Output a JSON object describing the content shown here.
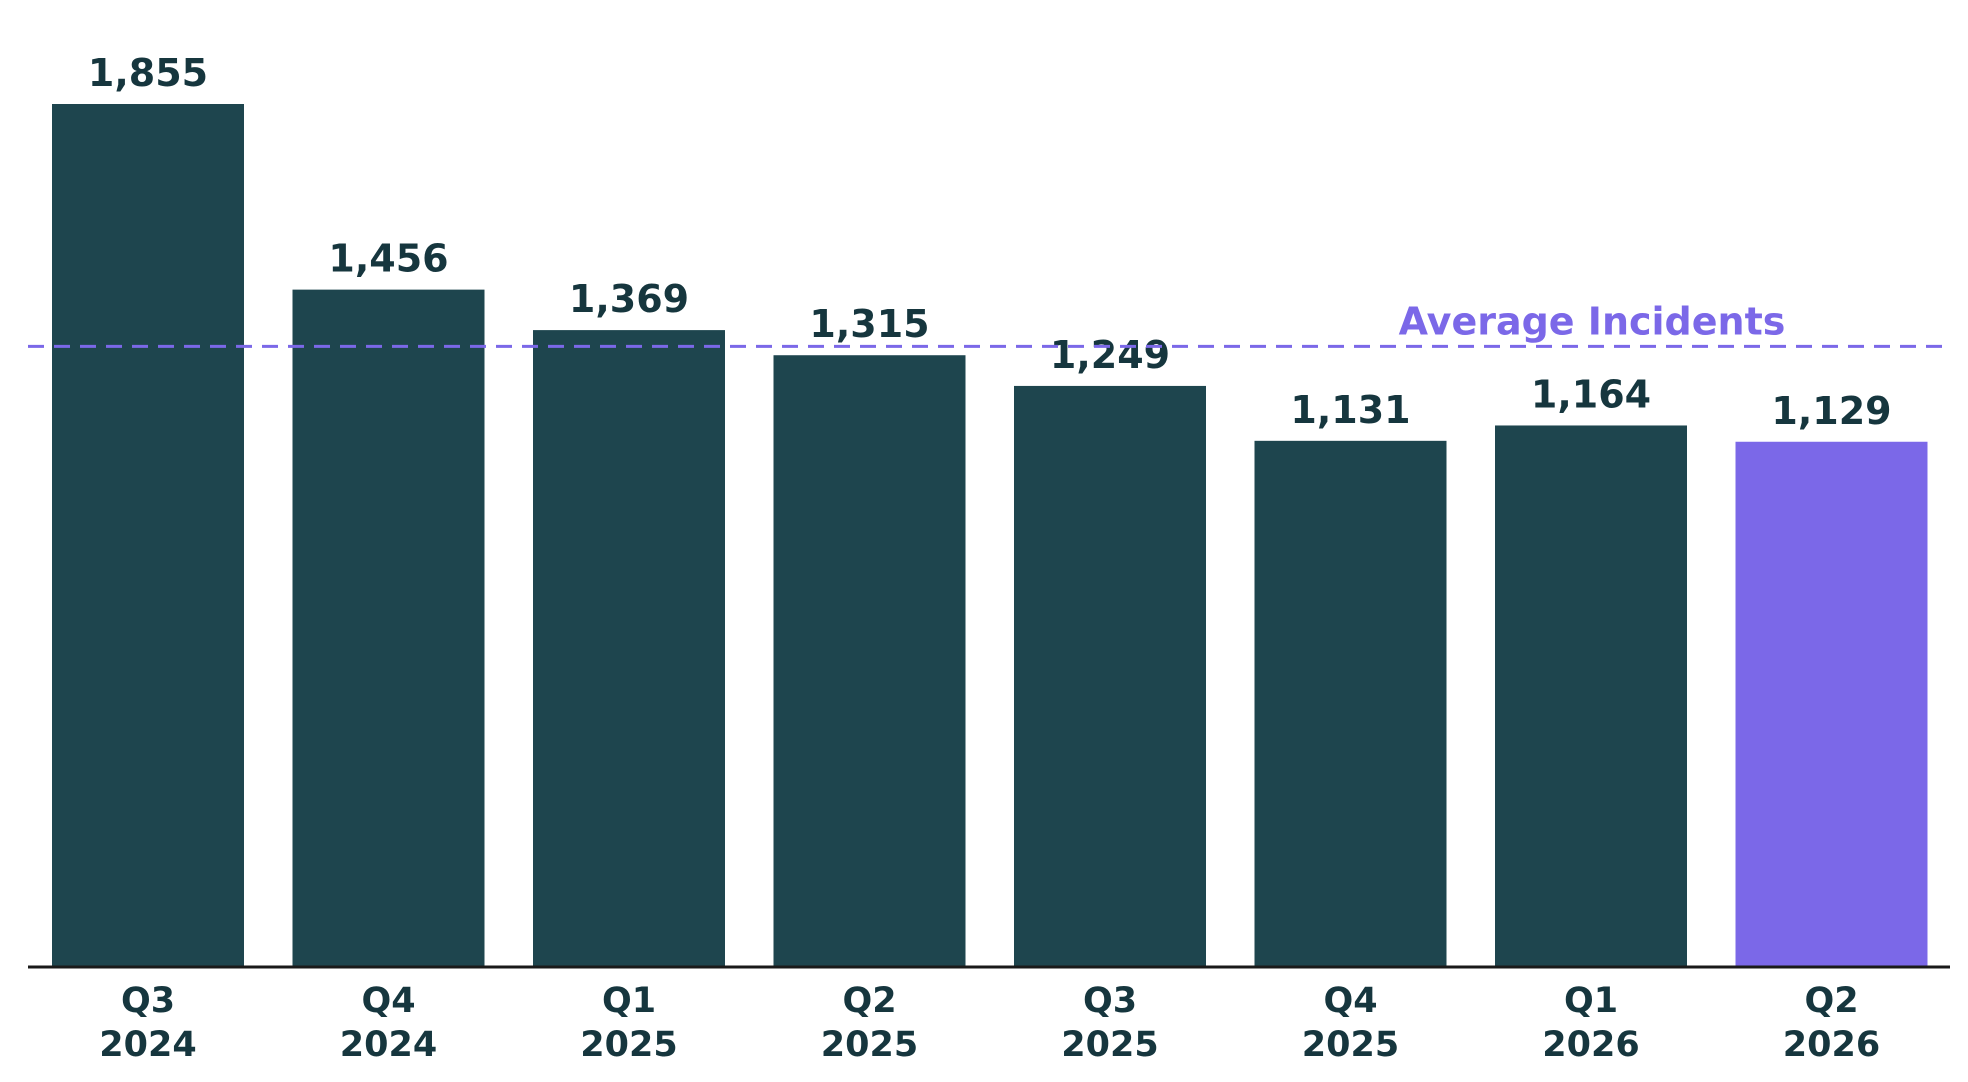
{
  "chart_data": {
    "type": "bar",
    "categories": [
      [
        "Q3",
        "2024"
      ],
      [
        "Q4",
        "2024"
      ],
      [
        "Q1",
        "2025"
      ],
      [
        "Q2",
        "2025"
      ],
      [
        "Q3",
        "2025"
      ],
      [
        "Q4",
        "2025"
      ],
      [
        "Q1",
        "2026"
      ],
      [
        "Q2",
        "2026"
      ]
    ],
    "values": [
      1855,
      1456,
      1369,
      1315,
      1249,
      1131,
      1164,
      1129
    ],
    "value_labels": [
      "1,855",
      "1,456",
      "1,369",
      "1,315",
      "1,249",
      "1,131",
      "1,164",
      "1,129"
    ],
    "reference_line": {
      "label": "Average Incidents",
      "value": 1334,
      "style": "dashed",
      "color": "#7b68e8"
    },
    "colors": {
      "bar": "#1e454e",
      "highlight_bar": "#7b68e8",
      "text": "#16363e",
      "axis": "#1a1a1a"
    },
    "highlighted_index": 7,
    "ylim": [
      0,
      1855
    ],
    "grid": false,
    "legend": "none",
    "title": "",
    "xlabel": "",
    "ylabel": ""
  }
}
